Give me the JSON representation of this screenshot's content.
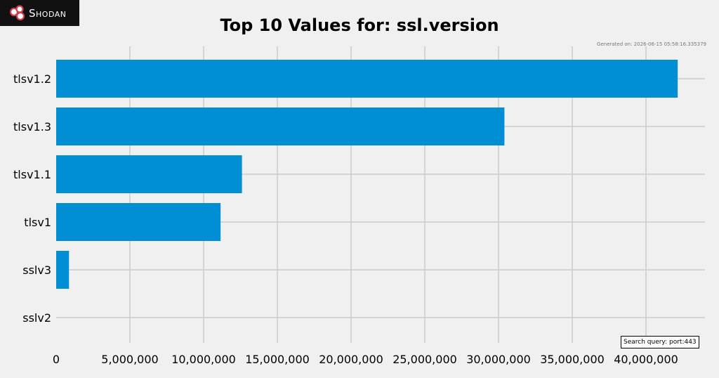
{
  "branding": {
    "logo_text": "Shodan"
  },
  "colors": {
    "bar": "#008fd5",
    "grid": "#cbcbcb",
    "background": "#f0f0f0"
  },
  "generated": "Generated on: 2026-06-15 05:58:16.335379",
  "search_query": "Search query: port:443",
  "chart_data": {
    "type": "bar",
    "orientation": "horizontal",
    "title": "Top 10 Values for: ssl.version",
    "xlabel": "",
    "ylabel": "",
    "grid": true,
    "xlim": [
      0,
      44000000
    ],
    "xticks": [
      0,
      5000000,
      10000000,
      15000000,
      20000000,
      25000000,
      30000000,
      35000000,
      40000000
    ],
    "xtick_labels": [
      "0",
      "5,000,000",
      "10,000,000",
      "15,000,000",
      "20,000,000",
      "25,000,000",
      "30,000,000",
      "35,000,000",
      "40,000,000"
    ],
    "categories": [
      "tlsv1.2",
      "tlsv1.3",
      "tlsv1.1",
      "tlsv1",
      "sslv3",
      "sslv2"
    ],
    "values": [
      42150000,
      30400000,
      12600000,
      11150000,
      870000,
      0
    ]
  }
}
